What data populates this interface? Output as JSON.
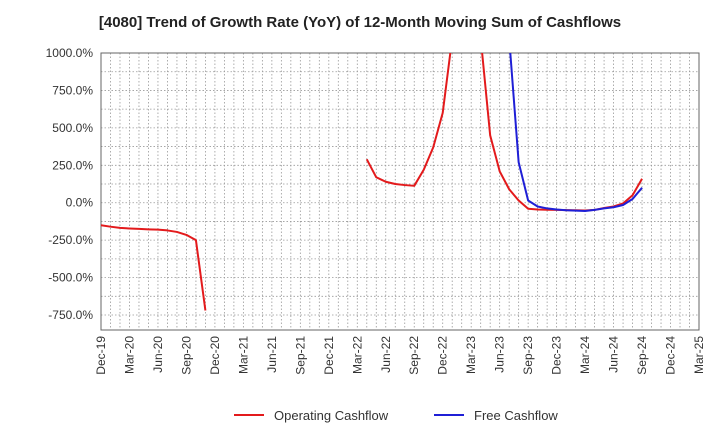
{
  "chart_data": {
    "type": "line",
    "title": "[4080]  Trend of Growth Rate (YoY) of 12-Month Moving Sum of Cashflows",
    "xlabel": "",
    "ylabel": "",
    "ylim": [
      -850,
      1000
    ],
    "y_ticks": [
      1000,
      750,
      500,
      250,
      0,
      -250,
      -500,
      -750
    ],
    "y_tick_labels": [
      "1000.0%",
      "750.0%",
      "500.0%",
      "250.0%",
      "0.0%",
      "-250.0%",
      "-500.0%",
      "-750.0%"
    ],
    "x_range": [
      "2019-12",
      "2025-03"
    ],
    "x_tick_labels": [
      "Dec-19",
      "Mar-20",
      "Jun-20",
      "Sep-20",
      "Dec-20",
      "Mar-21",
      "Jun-21",
      "Sep-21",
      "Dec-21",
      "Mar-22",
      "Jun-22",
      "Sep-22",
      "Dec-22",
      "Mar-23",
      "Jun-23",
      "Sep-23",
      "Dec-23",
      "Mar-24",
      "Jun-24",
      "Sep-24",
      "Dec-24",
      "Mar-25"
    ],
    "grid": true,
    "legend_position": "bottom",
    "series": [
      {
        "name": "Operating Cashflow",
        "color": "#e31a1c",
        "points": [
          [
            "2019-12",
            -150
          ],
          [
            "2020-01",
            -160
          ],
          [
            "2020-02",
            -168
          ],
          [
            "2020-03",
            -172
          ],
          [
            "2020-04",
            -175
          ],
          [
            "2020-05",
            -178
          ],
          [
            "2020-06",
            -180
          ],
          [
            "2020-07",
            -185
          ],
          [
            "2020-08",
            -195
          ],
          [
            "2020-09",
            -215
          ],
          [
            "2020-10",
            -250
          ],
          [
            "2020-11",
            -720
          ],
          null,
          [
            "2022-04",
            290
          ],
          [
            "2022-05",
            170
          ],
          [
            "2022-06",
            140
          ],
          [
            "2022-07",
            125
          ],
          [
            "2022-08",
            118
          ],
          [
            "2022-09",
            113
          ],
          [
            "2022-10",
            220
          ],
          [
            "2022-11",
            370
          ],
          [
            "2022-12",
            600
          ],
          [
            "2023-01",
            1100
          ],
          null,
          [
            "2023-04",
            1100
          ],
          [
            "2023-05",
            450
          ],
          [
            "2023-06",
            210
          ],
          [
            "2023-07",
            90
          ],
          [
            "2023-08",
            15
          ],
          [
            "2023-09",
            -40
          ],
          [
            "2023-10",
            -45
          ],
          [
            "2023-11",
            -47
          ],
          [
            "2023-12",
            -48
          ],
          [
            "2024-01",
            -49
          ],
          [
            "2024-02",
            -50
          ],
          [
            "2024-03",
            -52
          ],
          [
            "2024-04",
            -48
          ],
          [
            "2024-05",
            -35
          ],
          [
            "2024-06",
            -25
          ],
          [
            "2024-07",
            -5
          ],
          [
            "2024-08",
            50
          ],
          [
            "2024-09",
            160
          ]
        ]
      },
      {
        "name": "Free Cashflow",
        "color": "#1f1fd6",
        "points": [
          [
            "2023-07",
            1100
          ],
          [
            "2023-08",
            270
          ],
          [
            "2023-09",
            15
          ],
          [
            "2023-10",
            -25
          ],
          [
            "2023-11",
            -38
          ],
          [
            "2023-12",
            -45
          ],
          [
            "2024-01",
            -50
          ],
          [
            "2024-02",
            -53
          ],
          [
            "2024-03",
            -55
          ],
          [
            "2024-04",
            -48
          ],
          [
            "2024-05",
            -38
          ],
          [
            "2024-06",
            -30
          ],
          [
            "2024-07",
            -15
          ],
          [
            "2024-08",
            25
          ],
          [
            "2024-09",
            100
          ]
        ]
      }
    ]
  }
}
